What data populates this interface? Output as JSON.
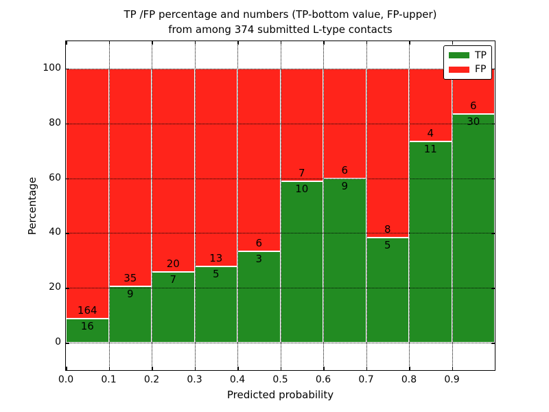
{
  "figure": {
    "title_line1": "TP /FP percentage and numbers (TP-bottom value, FP-upper)",
    "title_line2": "from among 374 submitted L-type contacts"
  },
  "chart_data": {
    "type": "bar",
    "stacked": true,
    "normalized": "each bin stacked to 100%",
    "title": "TP /FP percentage and numbers (TP-bottom value, FP-upper)\nfrom among 374 submitted L-type contacts",
    "xlabel": "Predicted probability",
    "ylabel": "Percentage",
    "total_contacts": 374,
    "bin_edges": [
      0.0,
      0.1,
      0.2,
      0.3,
      0.4,
      0.5,
      0.6,
      0.7,
      0.8,
      0.9,
      1.0
    ],
    "x_ticks": [
      {
        "value": 0.0,
        "label": "0.0"
      },
      {
        "value": 0.1,
        "label": "0.1"
      },
      {
        "value": 0.2,
        "label": "0.2"
      },
      {
        "value": 0.3,
        "label": "0.3"
      },
      {
        "value": 0.4,
        "label": "0.4"
      },
      {
        "value": 0.5,
        "label": "0.5"
      },
      {
        "value": 0.6,
        "label": "0.6"
      },
      {
        "value": 0.7,
        "label": "0.7"
      },
      {
        "value": 0.8,
        "label": "0.8"
      },
      {
        "value": 0.9,
        "label": "0.9"
      }
    ],
    "y_ticks": [
      {
        "value": 0,
        "label": "0"
      },
      {
        "value": 20,
        "label": "20"
      },
      {
        "value": 40,
        "label": "40"
      },
      {
        "value": 60,
        "label": "60"
      },
      {
        "value": 80,
        "label": "80"
      },
      {
        "value": 100,
        "label": "100"
      }
    ],
    "xlim": [
      0.0,
      1.0
    ],
    "ylim": [
      -10,
      110
    ],
    "grid": "dotted black, horizontal and vertical, drawn over bars",
    "series": [
      {
        "name": "TP",
        "color": "#228B22",
        "counts": [
          16,
          9,
          7,
          5,
          3,
          10,
          9,
          5,
          11,
          30
        ]
      },
      {
        "name": "FP",
        "color": "#FF241B",
        "counts": [
          164,
          35,
          20,
          13,
          6,
          7,
          6,
          8,
          4,
          6
        ]
      }
    ],
    "tp_percent_heights": [
      8.89,
      20.45,
      25.93,
      27.78,
      33.33,
      58.82,
      60.0,
      38.46,
      73.33,
      83.33
    ],
    "legend": {
      "position": "upper right",
      "entries": [
        {
          "label": "TP",
          "color": "#228B22"
        },
        {
          "label": "FP",
          "color": "#FF241B"
        }
      ]
    }
  },
  "colors": {
    "tp_green": "#228B22",
    "fp_red": "#FF241B",
    "bar_edge": "#FFFFFF",
    "grid": "#000000",
    "frame": "#000000",
    "background": "#FFFFFF",
    "text": "#000000"
  }
}
